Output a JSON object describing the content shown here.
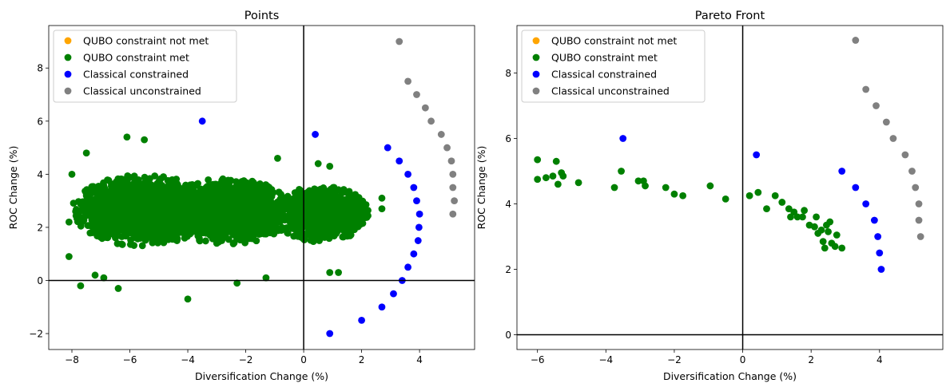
{
  "figure": {
    "legend_labels": [
      "QUBO constraint not met",
      "QUBO constraint met",
      "Classical constrained",
      "Classical unconstrained"
    ],
    "legend_colors": [
      "#FFA500",
      "#008000",
      "#0000FF",
      "#808080"
    ]
  },
  "chart_data": [
    {
      "type": "scatter",
      "title": "Points",
      "xlabel": "Diversification Change (%)",
      "ylabel": "ROC Change (%)",
      "xlim": [
        -8.8,
        5.9
      ],
      "ylim": [
        -2.6,
        9.6
      ],
      "xticks": [
        -8,
        -6,
        -4,
        -2,
        0,
        2,
        4
      ],
      "yticks": [
        -2,
        0,
        2,
        4,
        6,
        8
      ],
      "xtick_labels": [
        "−8",
        "−6",
        "−4",
        "−2",
        "0",
        "2",
        "4"
      ],
      "ytick_labels": [
        "−2",
        "0",
        "2",
        "4",
        "6",
        "8"
      ],
      "axhline": 0,
      "axvline": 0,
      "grid": false,
      "legend_position": "top-left",
      "series": [
        {
          "name": "QUBO constraint not met",
          "color": "#FFA500",
          "points": []
        },
        {
          "name": "QUBO constraint met",
          "color": "#008000",
          "note": "dense cloud of several thousand points",
          "points": [
            [
              -8.1,
              2.2
            ],
            [
              -8.1,
              0.9
            ],
            [
              -8.0,
              4.0
            ],
            [
              -7.7,
              -0.2
            ],
            [
              -7.5,
              4.8
            ],
            [
              -7.2,
              0.2
            ],
            [
              -6.9,
              0.1
            ],
            [
              -6.4,
              -0.3
            ],
            [
              -6.1,
              5.4
            ],
            [
              -5.5,
              5.3
            ],
            [
              -4.0,
              -0.7
            ],
            [
              -2.3,
              -0.1
            ],
            [
              -1.3,
              0.1
            ],
            [
              -0.9,
              4.6
            ],
            [
              0.5,
              4.4
            ],
            [
              0.9,
              4.3
            ],
            [
              0.9,
              0.3
            ],
            [
              1.2,
              0.3
            ],
            [
              2.7,
              2.7
            ],
            [
              2.7,
              3.1
            ]
          ],
          "cloud": [
            {
              "cx": -5.6,
              "cy": 2.65,
              "rx": 2.4,
              "ry": 1.35,
              "n": 1900
            },
            {
              "cx": -2.6,
              "cy": 2.6,
              "rx": 2.3,
              "ry": 1.25,
              "n": 1500
            },
            {
              "cx": 0.6,
              "cy": 2.5,
              "rx": 1.7,
              "ry": 1.05,
              "n": 950
            }
          ]
        },
        {
          "name": "Classical constrained",
          "color": "#0000FF",
          "points": [
            [
              -3.5,
              6.0
            ],
            [
              0.4,
              5.5
            ],
            [
              2.9,
              5.0
            ],
            [
              3.3,
              4.5
            ],
            [
              3.6,
              4.0
            ],
            [
              3.8,
              3.5
            ],
            [
              3.9,
              3.0
            ],
            [
              4.0,
              2.5
            ],
            [
              3.98,
              2.0
            ],
            [
              3.95,
              1.5
            ],
            [
              3.8,
              1.0
            ],
            [
              3.6,
              0.5
            ],
            [
              3.4,
              0.0
            ],
            [
              3.1,
              -0.5
            ],
            [
              2.7,
              -1.0
            ],
            [
              2.0,
              -1.5
            ],
            [
              0.9,
              -2.0
            ]
          ]
        },
        {
          "name": "Classical unconstrained",
          "color": "#808080",
          "points": [
            [
              3.3,
              9.0
            ],
            [
              3.6,
              7.5
            ],
            [
              3.9,
              7.0
            ],
            [
              4.2,
              6.5
            ],
            [
              4.4,
              6.0
            ],
            [
              4.75,
              5.5
            ],
            [
              4.95,
              5.0
            ],
            [
              5.1,
              4.5
            ],
            [
              5.15,
              4.0
            ],
            [
              5.15,
              3.5
            ],
            [
              5.2,
              3.0
            ],
            [
              5.15,
              2.5
            ]
          ]
        }
      ]
    },
    {
      "type": "scatter",
      "title": "Pareto Front",
      "xlabel": "Diversification Change (%)",
      "ylabel": "ROC Change (%)",
      "xlim": [
        -6.6,
        5.85
      ],
      "ylim": [
        -0.45,
        9.45
      ],
      "xticks": [
        -6,
        -4,
        -2,
        0,
        2,
        4
      ],
      "yticks": [
        0,
        2,
        4,
        6,
        8
      ],
      "xtick_labels": [
        "−6",
        "−4",
        "−2",
        "0",
        "2",
        "4"
      ],
      "ytick_labels": [
        "0",
        "2",
        "4",
        "6",
        "8"
      ],
      "axhline": 0,
      "axvline": 0,
      "grid": false,
      "legend_position": "top-left",
      "series": [
        {
          "name": "QUBO constraint not met",
          "color": "#FFA500",
          "points": []
        },
        {
          "name": "QUBO constraint met",
          "color": "#008000",
          "points": [
            [
              -6.0,
              5.35
            ],
            [
              -6.0,
              4.75
            ],
            [
              -5.75,
              4.8
            ],
            [
              -5.55,
              4.85
            ],
            [
              -5.45,
              5.3
            ],
            [
              -5.4,
              4.6
            ],
            [
              -5.3,
              4.95
            ],
            [
              -5.25,
              4.85
            ],
            [
              -4.8,
              4.65
            ],
            [
              -3.75,
              4.5
            ],
            [
              -3.55,
              5.0
            ],
            [
              -3.05,
              4.7
            ],
            [
              -2.9,
              4.7
            ],
            [
              -2.85,
              4.55
            ],
            [
              -2.25,
              4.5
            ],
            [
              -2.0,
              4.3
            ],
            [
              -1.75,
              4.25
            ],
            [
              -0.95,
              4.55
            ],
            [
              -0.5,
              4.15
            ],
            [
              0.2,
              4.25
            ],
            [
              0.45,
              4.35
            ],
            [
              0.7,
              3.85
            ],
            [
              0.95,
              4.25
            ],
            [
              1.15,
              4.05
            ],
            [
              1.35,
              3.85
            ],
            [
              1.4,
              3.6
            ],
            [
              1.5,
              3.75
            ],
            [
              1.6,
              3.6
            ],
            [
              1.75,
              3.6
            ],
            [
              1.8,
              3.8
            ],
            [
              1.95,
              3.35
            ],
            [
              2.1,
              3.3
            ],
            [
              2.15,
              3.6
            ],
            [
              2.2,
              3.1
            ],
            [
              2.3,
              3.2
            ],
            [
              2.35,
              2.85
            ],
            [
              2.4,
              2.65
            ],
            [
              2.45,
              3.35
            ],
            [
              2.5,
              3.15
            ],
            [
              2.55,
              3.45
            ],
            [
              2.6,
              2.8
            ],
            [
              2.7,
              2.7
            ],
            [
              2.75,
              3.05
            ],
            [
              2.9,
              2.65
            ]
          ]
        },
        {
          "name": "Classical constrained",
          "color": "#0000FF",
          "points": [
            [
              -3.5,
              6.0
            ],
            [
              0.4,
              5.5
            ],
            [
              2.9,
              5.0
            ],
            [
              3.3,
              4.5
            ],
            [
              3.6,
              4.0
            ],
            [
              3.85,
              3.5
            ],
            [
              3.95,
              3.0
            ],
            [
              4.0,
              2.5
            ],
            [
              4.05,
              2.0
            ]
          ]
        },
        {
          "name": "Classical unconstrained",
          "color": "#808080",
          "points": [
            [
              3.3,
              9.0
            ],
            [
              3.6,
              7.5
            ],
            [
              3.9,
              7.0
            ],
            [
              4.2,
              6.5
            ],
            [
              4.4,
              6.0
            ],
            [
              4.75,
              5.5
            ],
            [
              4.95,
              5.0
            ],
            [
              5.05,
              4.5
            ],
            [
              5.15,
              4.0
            ],
            [
              5.15,
              3.5
            ],
            [
              5.2,
              3.0
            ]
          ]
        }
      ]
    }
  ]
}
